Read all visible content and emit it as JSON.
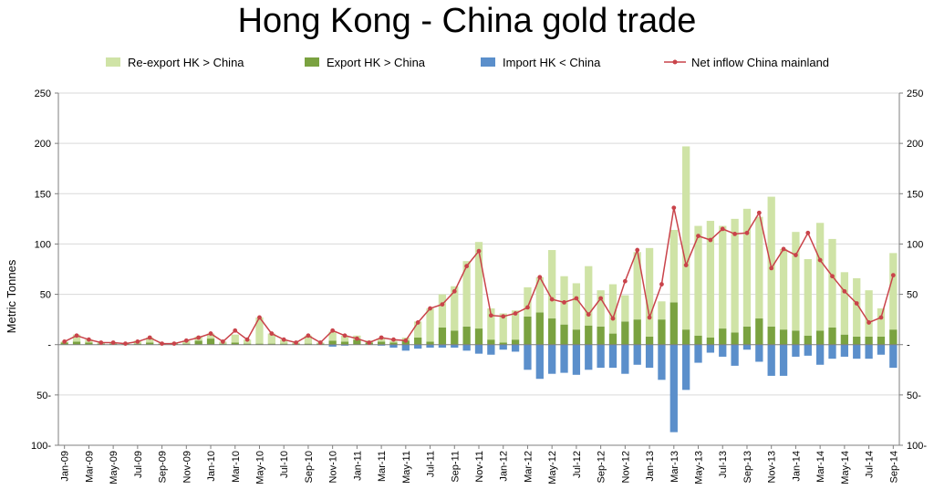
{
  "chart_data": {
    "type": "bar",
    "title": "Hong Kong - China gold trade",
    "ylabel": "Metric Tonnes",
    "ylim": [
      -100,
      250
    ],
    "y_tick_values": [
      250,
      200,
      150,
      100,
      50,
      0,
      -50,
      -100
    ],
    "y_tick_labels": [
      "250",
      "200",
      "150",
      "100",
      "50",
      "-",
      "50-",
      "100-"
    ],
    "grid": "horizontal",
    "legend_position": "top",
    "colors": {
      "reexport": "#cfe3a6",
      "export": "#7aa240",
      "import": "#5b8fcb",
      "net": "#c9434a",
      "grid": "#d9d9d9",
      "axis": "#7f7f7f"
    },
    "categories": [
      "Jan-09",
      "Feb-09",
      "Mar-09",
      "Apr-09",
      "May-09",
      "Jun-09",
      "Jul-09",
      "Aug-09",
      "Sep-09",
      "Oct-09",
      "Nov-09",
      "Dec-09",
      "Jan-10",
      "Feb-10",
      "Mar-10",
      "Apr-10",
      "May-10",
      "Jun-10",
      "Jul-10",
      "Aug-10",
      "Sep-10",
      "Oct-10",
      "Nov-10",
      "Dec-10",
      "Jan-11",
      "Feb-11",
      "Mar-11",
      "Apr-11",
      "May-11",
      "Jun-11",
      "Jul-11",
      "Aug-11",
      "Sep-11",
      "Oct-11",
      "Nov-11",
      "Dec-11",
      "Jan-12",
      "Feb-12",
      "Mar-12",
      "Apr-12",
      "May-12",
      "Jun-12",
      "Jul-12",
      "Aug-12",
      "Sep-12",
      "Oct-12",
      "Nov-12",
      "Dec-12",
      "Jan-13",
      "Feb-13",
      "Mar-13",
      "Apr-13",
      "May-13",
      "Jun-13",
      "Jul-13",
      "Aug-13",
      "Sep-13",
      "Oct-13",
      "Nov-13",
      "Dec-13",
      "Jan-14",
      "Feb-14",
      "Mar-14",
      "Apr-14",
      "May-14",
      "Jun-14",
      "Jul-14",
      "Aug-14",
      "Sep-14"
    ],
    "x_tick_labels": [
      "Jan-09",
      "Mar-09",
      "May-09",
      "Jul-09",
      "Sep-09",
      "Nov-09",
      "Jan-10",
      "Mar-10",
      "May-10",
      "Jul-10",
      "Sep-10",
      "Nov-10",
      "Jan-11",
      "Mar-11",
      "May-11",
      "Jul-11",
      "Sep-11",
      "Nov-11",
      "Jan-12",
      "Mar-12",
      "May-12",
      "Jul-12",
      "Sep-12",
      "Nov-12",
      "Jan-13",
      "Mar-13",
      "May-13",
      "Jul-13",
      "Sep-13",
      "Nov-13",
      "Jan-14",
      "Mar-14",
      "May-14",
      "Jul-14",
      "Sep-14"
    ],
    "series": [
      {
        "name": "Re-export HK > China",
        "key": "reexport",
        "kind": "bar",
        "values": [
          1,
          7,
          3,
          1,
          1,
          0,
          3,
          5,
          0,
          1,
          3,
          4,
          5,
          2,
          8,
          4,
          26,
          10,
          4,
          1,
          8,
          1,
          9,
          6,
          4,
          2,
          3,
          2,
          3,
          16,
          33,
          33,
          44,
          65,
          86,
          31,
          29,
          29,
          29,
          35,
          68,
          48,
          46,
          59,
          36,
          49,
          26,
          67,
          88,
          18,
          72,
          182,
          109,
          116,
          102,
          113,
          117,
          101,
          129,
          80,
          98,
          76,
          107,
          88,
          62,
          58,
          46,
          28,
          76
        ]
      },
      {
        "name": "Export HK > China",
        "key": "export",
        "kind": "bar",
        "values": [
          2,
          3,
          2,
          1,
          1,
          1,
          1,
          2,
          1,
          1,
          1,
          4,
          6,
          1,
          2,
          1,
          1,
          1,
          1,
          1,
          1,
          1,
          4,
          3,
          5,
          2,
          3,
          2,
          4,
          7,
          3,
          17,
          14,
          18,
          16,
          5,
          2,
          5,
          28,
          32,
          26,
          20,
          15,
          19,
          18,
          11,
          23,
          25,
          8,
          25,
          42,
          15,
          9,
          7,
          16,
          12,
          18,
          26,
          18,
          15,
          14,
          9,
          14,
          17,
          10,
          8,
          8,
          8,
          15
        ]
      },
      {
        "name": "Import HK < China",
        "key": "import",
        "kind": "bar",
        "values": [
          0,
          0,
          0,
          0,
          0,
          0,
          0,
          0,
          0,
          0,
          0,
          0,
          0,
          0,
          0,
          0,
          0,
          0,
          0,
          0,
          0,
          0,
          -2,
          -1,
          0,
          0,
          -1,
          -3,
          -6,
          -4,
          -3,
          -3,
          -3,
          -6,
          -9,
          -10,
          -5,
          -7,
          -25,
          -34,
          -29,
          -28,
          -30,
          -25,
          -23,
          -23,
          -29,
          -20,
          -23,
          -35,
          -87,
          -45,
          -18,
          -8,
          -12,
          -21,
          -5,
          -17,
          -31,
          -31,
          -12,
          -11,
          -20,
          -14,
          -12,
          -14,
          -14,
          -10,
          -23
        ]
      },
      {
        "name": "Net inflow China mainland",
        "key": "net",
        "kind": "line",
        "values": [
          3,
          9,
          5,
          2,
          2,
          1,
          3,
          7,
          1,
          1,
          4,
          7,
          11,
          3,
          14,
          5,
          27,
          11,
          5,
          2,
          9,
          2,
          14,
          9,
          6,
          2,
          7,
          5,
          4,
          22,
          36,
          40,
          53,
          78,
          93,
          29,
          28,
          31,
          37,
          67,
          45,
          42,
          46,
          30,
          46,
          26,
          63,
          94,
          27,
          60,
          136,
          79,
          108,
          104,
          115,
          110,
          111,
          131,
          76,
          95,
          89,
          111,
          84,
          68,
          53,
          41,
          22,
          27,
          69
        ]
      }
    ]
  }
}
